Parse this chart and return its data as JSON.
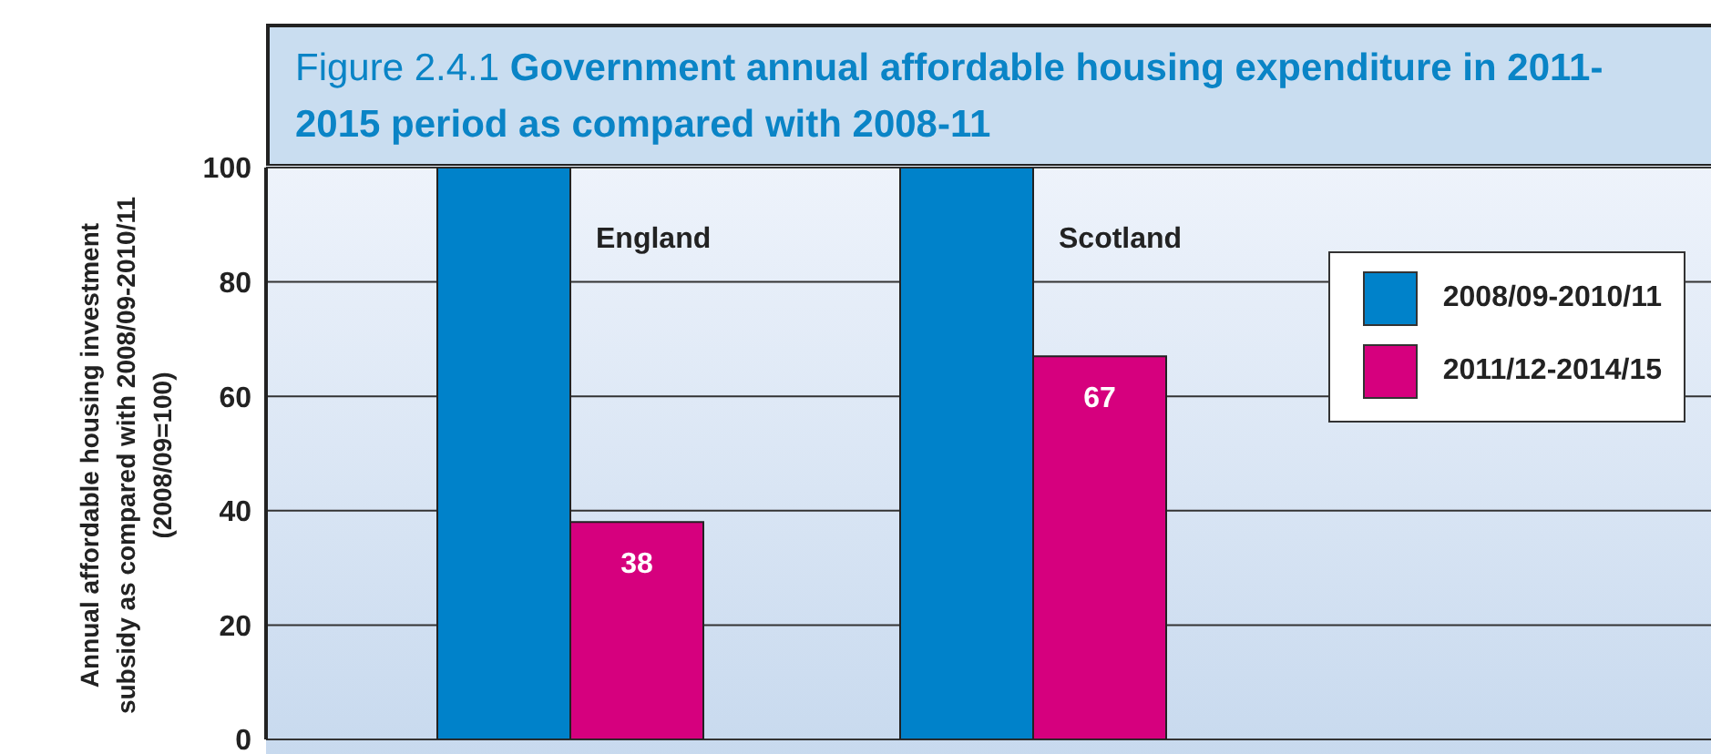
{
  "chart_data": {
    "type": "bar",
    "title": "Figure 2.4.1 Government annual affordable housing expenditure in 2011-2015 period as compared with 2008-11",
    "ylabel": "Annual affordable housing investment subsidy as compared with 2008/09-2010/11 (2008/09=100)",
    "categories": [
      "England",
      "Scotland"
    ],
    "series": [
      {
        "name": "2008/09-2010/11",
        "color": "#0082ca",
        "values": [
          100,
          100
        ]
      },
      {
        "name": "2011/12-2014/15",
        "color": "#d6007e",
        "values": [
          38,
          67
        ],
        "value_labels": [
          "38",
          "67"
        ]
      }
    ],
    "ylim": [
      0,
      100
    ],
    "yticks": [
      0,
      20,
      40,
      60,
      80,
      100
    ],
    "grid": "y",
    "legend": "top right"
  }
}
